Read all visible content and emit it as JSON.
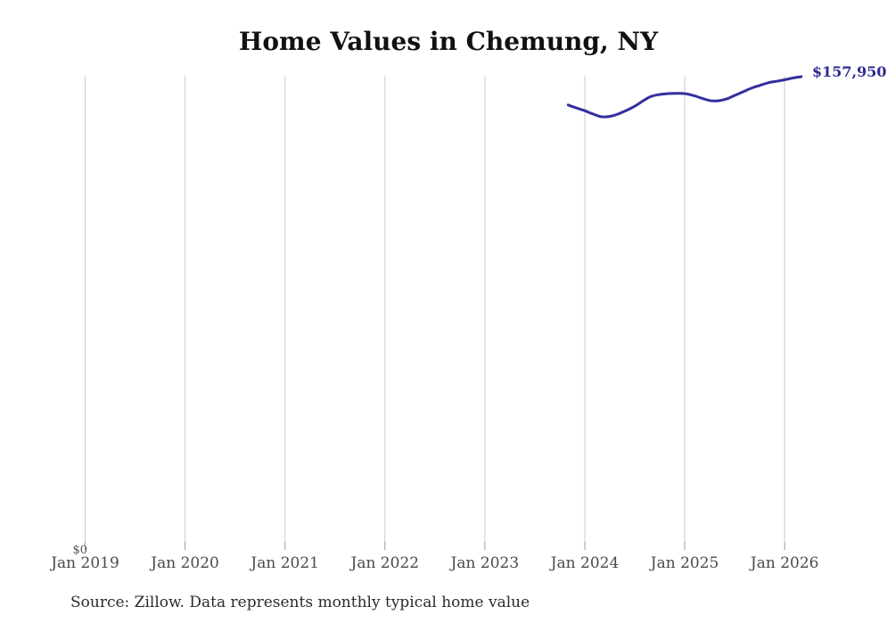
{
  "header": {
    "title": "Home Values in Chemung, NY"
  },
  "chart": {
    "end_value_label": "$157,950",
    "y_zero_label": "$0"
  },
  "footer": {
    "source_note": "Source: Zillow. Data represents monthly typical home value"
  },
  "colors": {
    "line": "#332f9e",
    "end_annotation": "#2e2a93",
    "gridline": "#cccccc",
    "tick": "#999999",
    "axis_label": "#4a4a4a",
    "title": "#111111",
    "background": "#ffffff"
  },
  "chart_data": {
    "type": "line",
    "title": "Home Values in Chemung, NY",
    "xlabel": "",
    "ylabel": "",
    "x_tick_labels": [
      "Jan 2019",
      "Jan 2020",
      "Jan 2021",
      "Jan 2022",
      "Jan 2023",
      "Jan 2024",
      "Jan 2025",
      "Jan 2026"
    ],
    "y_tick_labels": [
      "$0"
    ],
    "ylim": [
      0,
      170000
    ],
    "grid": "vertical-gridlines-only",
    "legend": "none",
    "end_annotation": {
      "text": "$157,950",
      "value": 157950
    },
    "series": [
      {
        "name": "Monthly typical home value",
        "color": "#332f9e",
        "x": [
          "2023-11",
          "2023-12",
          "2024-01",
          "2024-02",
          "2024-03",
          "2024-04",
          "2024-05",
          "2024-06",
          "2024-07",
          "2024-08",
          "2024-09",
          "2024-10",
          "2024-11",
          "2024-12",
          "2025-01",
          "2025-02",
          "2025-03",
          "2025-04",
          "2025-05",
          "2025-06",
          "2025-07",
          "2025-08",
          "2025-09",
          "2025-10",
          "2025-11",
          "2025-12",
          "2026-01",
          "2026-02",
          "2026-03"
        ],
        "values": [
          148500,
          147500,
          146600,
          145500,
          144600,
          144700,
          145500,
          146700,
          148100,
          149900,
          151400,
          152000,
          152300,
          152400,
          152300,
          151700,
          150800,
          150000,
          149900,
          150500,
          151700,
          152900,
          154100,
          155000,
          155900,
          156400,
          156900,
          157500,
          157950
        ]
      }
    ]
  }
}
